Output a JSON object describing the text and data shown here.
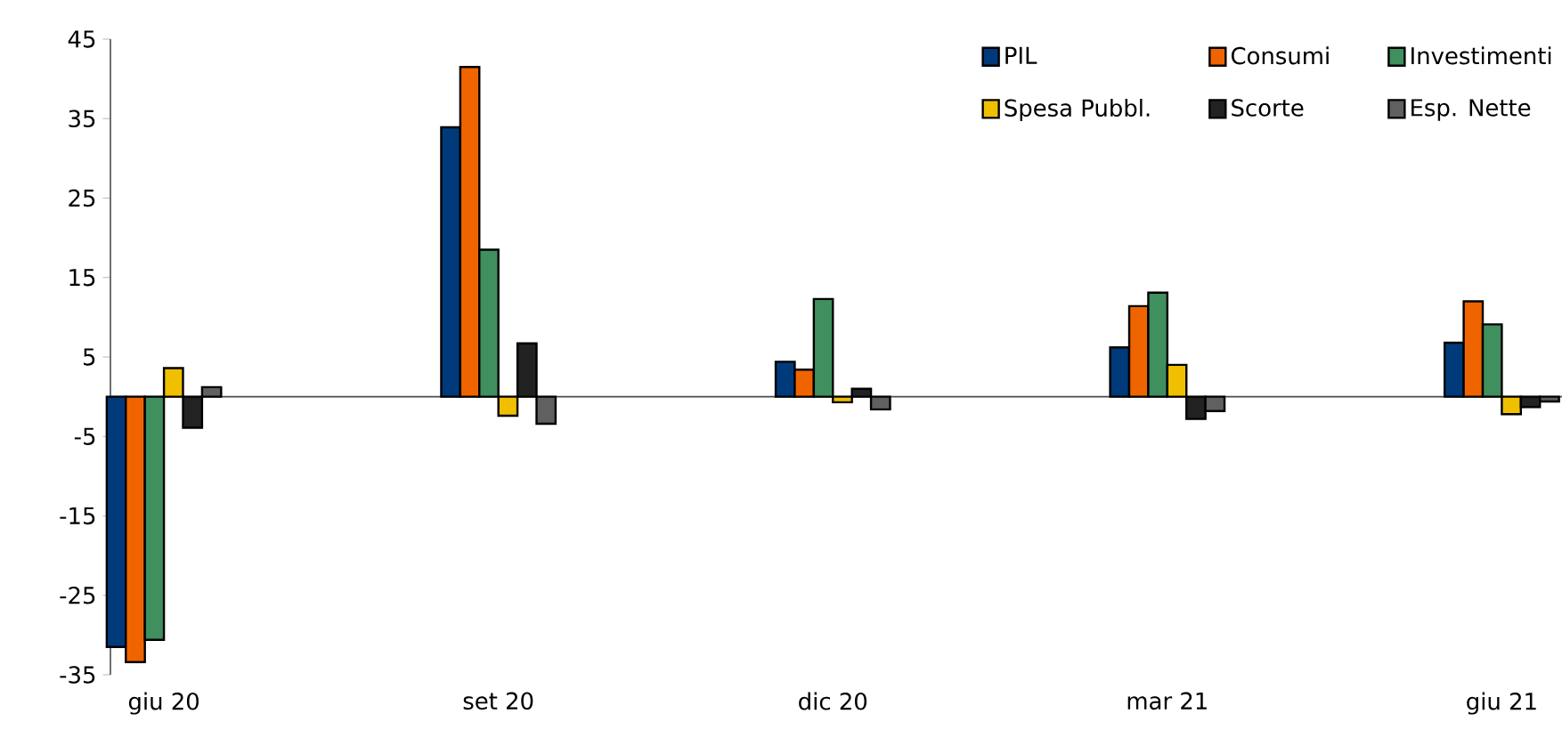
{
  "chart_data": {
    "type": "bar",
    "categories": [
      "giu 20",
      "set 20",
      "dic 20",
      "mar 21",
      "giu 21"
    ],
    "series": [
      {
        "name": "PIL",
        "color": "#003a7a",
        "values": [
          -31.5,
          33.9,
          4.4,
          6.2,
          6.8
        ]
      },
      {
        "name": "Consumi",
        "color": "#f06400",
        "values": [
          -33.4,
          41.5,
          3.4,
          11.4,
          12.0
        ]
      },
      {
        "name": "Investimenti",
        "color": "#3f8f5f",
        "values": [
          -30.6,
          18.5,
          12.3,
          13.1,
          9.1
        ]
      },
      {
        "name": "Spesa Pubbl.",
        "color": "#f0c000",
        "values": [
          3.6,
          -2.4,
          -0.7,
          4.0,
          -2.2
        ]
      },
      {
        "name": "Scorte",
        "color": "#222222",
        "values": [
          -3.9,
          6.7,
          1.0,
          -2.8,
          -1.3
        ]
      },
      {
        "name": "Esp. Nette",
        "color": "#606060",
        "values": [
          1.2,
          -3.4,
          -1.6,
          -1.8,
          -0.6
        ]
      }
    ],
    "ylim": [
      -35,
      45
    ],
    "yticks": [
      -35,
      -25,
      -15,
      -5,
      5,
      15,
      25,
      35,
      45
    ],
    "grid": false,
    "legend": "top right"
  }
}
